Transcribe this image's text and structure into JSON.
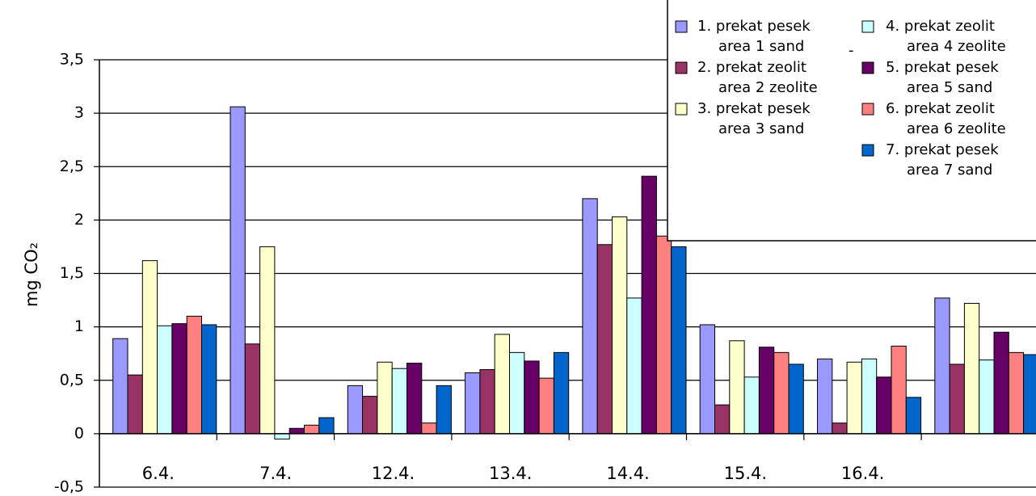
{
  "chart_data": {
    "type": "bar",
    "title": "",
    "ylabel": "mg CO₂",
    "xlabel": "",
    "ylim": [
      -0.5,
      3.5
    ],
    "yticks": [
      "3,5",
      "3",
      "2,5",
      "2",
      "1,5",
      "1",
      "0,5",
      "0",
      "-0,5"
    ],
    "grid": true,
    "legend_position": "top-right",
    "categories": [
      "6.4.",
      "7.4.",
      "12.4.",
      "13.4.",
      "14.4.",
      "15.4.",
      "16.4.",
      ""
    ],
    "series": [
      {
        "name": "1. prekat pesek",
        "name_line2": "area 1 sand",
        "color": "#9999ff",
        "values": [
          0.89,
          3.06,
          0.45,
          0.57,
          2.2,
          1.02,
          0.7,
          1.27
        ]
      },
      {
        "name": "2. prekat zeolit",
        "name_line2": "area 2 zeolite",
        "color": "#993366",
        "values": [
          0.55,
          0.84,
          0.35,
          0.6,
          1.77,
          0.27,
          0.1,
          0.65
        ]
      },
      {
        "name": "3. prekat pesek",
        "name_line2": "area 3 sand",
        "color": "#ffffcc",
        "values": [
          1.62,
          1.75,
          0.67,
          0.93,
          2.03,
          0.87,
          0.67,
          1.22
        ]
      },
      {
        "name": "4. prekat zeolit",
        "name_line2": "area 4 zeolite",
        "color": "#ccffff",
        "values": [
          1.01,
          -0.05,
          0.61,
          0.76,
          1.27,
          0.53,
          0.7,
          0.69
        ]
      },
      {
        "name": "5. prekat pesek",
        "name_line2": "area 5 sand",
        "color": "#660066",
        "values": [
          1.03,
          0.05,
          0.66,
          0.68,
          2.41,
          0.81,
          0.53,
          0.95
        ]
      },
      {
        "name": "6. prekat zeolit",
        "name_line2": "area 6 zeolite",
        "color": "#ff8080",
        "values": [
          1.1,
          0.08,
          0.1,
          0.52,
          1.85,
          0.76,
          0.82,
          0.76
        ]
      },
      {
        "name": "7. prekat pesek",
        "name_line2": "area 7 sand",
        "color": "#0066cc",
        "values": [
          1.02,
          0.15,
          0.45,
          0.76,
          1.75,
          0.65,
          0.34,
          0.74
        ]
      }
    ]
  },
  "legend_stray_mark": "-"
}
